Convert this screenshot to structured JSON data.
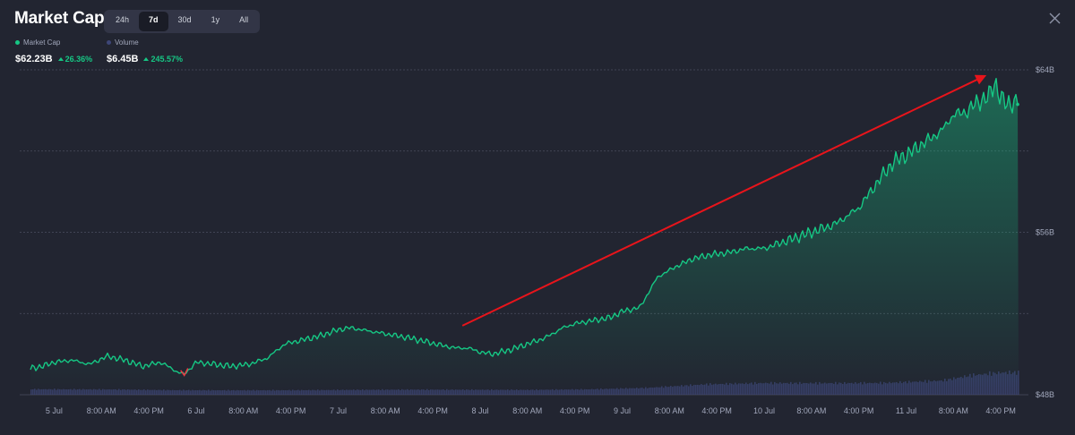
{
  "title": "Market Cap",
  "tabs": [
    {
      "label": "24h",
      "active": false
    },
    {
      "label": "7d",
      "active": true
    },
    {
      "label": "30d",
      "active": false
    },
    {
      "label": "1y",
      "active": false
    },
    {
      "label": "All",
      "active": false
    }
  ],
  "close_icon": "close-icon",
  "legend": {
    "market_cap": {
      "label": "Market Cap",
      "value": "$62.23B",
      "change": "26.36%",
      "color": "#16c784"
    },
    "volume": {
      "label": "Volume",
      "value": "$6.45B",
      "change": "245.57%",
      "color": "#3d4677"
    }
  },
  "colors": {
    "line": "#16c784",
    "dip": "#ea3943",
    "arrow": "#e8141b",
    "volume": "#3d4677",
    "background": "#222531"
  },
  "chart_data": {
    "type": "area",
    "y_ticks": [
      "$48B",
      "$56B",
      "$64B"
    ],
    "ylim": [
      48,
      64
    ],
    "y_unit": "B",
    "x_ticks": [
      "5 Jul",
      "8:00 AM",
      "4:00 PM",
      "6 Jul",
      "8:00 AM",
      "4:00 PM",
      "7 Jul",
      "8:00 AM",
      "4:00 PM",
      "8 Jul",
      "8:00 AM",
      "4:00 PM",
      "9 Jul",
      "8:00 AM",
      "4:00 PM",
      "10 Jul",
      "8:00 AM",
      "4:00 PM",
      "11 Jul",
      "8:00 AM",
      "4:00 PM"
    ],
    "x_tick_hours": [
      0,
      8,
      16,
      24,
      32,
      40,
      48,
      56,
      64,
      72,
      80,
      88,
      96,
      104,
      112,
      120,
      128,
      136,
      144,
      152,
      160
    ],
    "xlim": [
      -4,
      163
    ],
    "grid": true,
    "series": [
      {
        "name": "Market Cap",
        "x_hours": [
          -4,
          -2,
          0,
          3,
          6,
          9,
          12,
          15,
          18,
          21,
          22,
          24,
          27,
          30,
          33,
          36,
          39,
          42,
          45,
          48,
          50,
          52,
          54,
          56,
          58,
          60,
          63,
          66,
          68,
          70,
          72,
          74,
          77,
          80,
          83,
          86,
          88,
          90,
          92,
          94,
          96,
          99,
          102,
          105,
          108,
          111,
          114,
          117,
          120,
          124,
          128,
          132,
          136,
          140,
          142,
          144,
          146,
          148,
          150,
          152,
          154,
          156,
          158,
          159,
          160,
          161,
          163
        ],
        "values": [
          49.3,
          49.4,
          49.6,
          49.7,
          49.5,
          49.9,
          49.7,
          49.4,
          49.6,
          49.1,
          49.0,
          49.6,
          49.5,
          49.4,
          49.5,
          49.8,
          50.5,
          50.7,
          50.9,
          51.2,
          51.3,
          51.2,
          51.1,
          51.0,
          50.9,
          50.8,
          50.6,
          50.4,
          50.3,
          50.3,
          50.1,
          50.0,
          50.2,
          50.5,
          50.8,
          51.3,
          51.5,
          51.6,
          51.7,
          51.8,
          52.1,
          52.3,
          53.8,
          54.3,
          54.7,
          54.9,
          55.0,
          55.2,
          55.2,
          55.6,
          56.0,
          56.4,
          57.2,
          58.8,
          59.5,
          59.8,
          60.2,
          60.6,
          61.0,
          61.8,
          61.9,
          62.4,
          62.7,
          63.4,
          62.6,
          62.3,
          62.5
        ]
      },
      {
        "name": "Volume",
        "x_hours": [
          -4,
          10,
          20,
          30,
          40,
          50,
          60,
          70,
          80,
          90,
          100,
          110,
          120,
          130,
          140,
          150,
          155,
          160,
          163
        ],
        "values": [
          0.82,
          0.78,
          0.68,
          0.66,
          0.67,
          0.72,
          0.76,
          0.74,
          0.72,
          0.8,
          1.02,
          1.55,
          1.74,
          1.72,
          1.75,
          2.1,
          2.9,
          3.3,
          3.3
        ]
      }
    ],
    "volume_scale_max": 10
  }
}
